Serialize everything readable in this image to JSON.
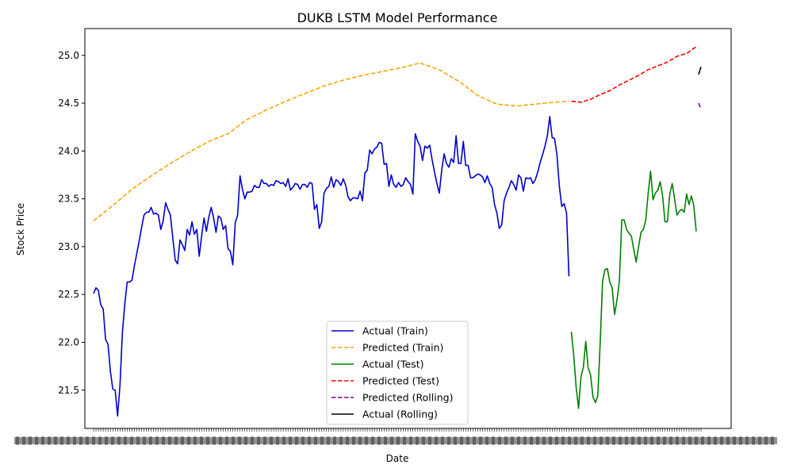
{
  "chart_data": {
    "type": "line",
    "title": "DUKB LSTM Model Performance",
    "xlabel": "Date",
    "ylabel": "Stock Price",
    "ylim": [
      21.1,
      25.28
    ],
    "yticks": [
      21.5,
      22.0,
      22.5,
      23.0,
      23.5,
      24.0,
      24.5,
      25.0
    ],
    "ytick_labels": [
      "21.5",
      "22.0",
      "22.5",
      "23.0",
      "23.5",
      "24.0",
      "24.5",
      "25.0"
    ],
    "x_tick_label_note": "x-axis tick labels are dense and overlapping (illegible)",
    "grid": false,
    "legend": "lower-center",
    "series": [
      {
        "name": "Actual (Train)",
        "color": "#0000cc",
        "style": "solid",
        "points": [
          [
            0,
            22.51
          ],
          [
            1,
            22.57
          ],
          [
            2,
            22.54
          ],
          [
            3,
            22.39
          ],
          [
            4,
            22.35
          ],
          [
            5,
            22.03
          ],
          [
            6,
            21.98
          ],
          [
            7,
            21.7
          ],
          [
            8,
            21.51
          ],
          [
            9,
            21.5
          ],
          [
            10,
            21.23
          ],
          [
            11,
            21.55
          ],
          [
            12,
            22.1
          ],
          [
            13,
            22.4
          ],
          [
            14,
            22.63
          ],
          [
            15,
            22.63
          ],
          [
            16,
            22.65
          ],
          [
            17,
            22.8
          ],
          [
            18,
            22.93
          ],
          [
            19,
            23.06
          ],
          [
            20,
            23.2
          ],
          [
            21,
            23.33
          ],
          [
            22,
            23.36
          ],
          [
            23,
            23.36
          ],
          [
            24,
            23.41
          ],
          [
            25,
            23.34
          ],
          [
            26,
            23.35
          ],
          [
            27,
            23.33
          ],
          [
            28,
            23.18
          ],
          [
            29,
            23.27
          ],
          [
            30,
            23.46
          ],
          [
            31,
            23.39
          ],
          [
            32,
            23.33
          ],
          [
            33,
            23.09
          ],
          [
            34,
            22.86
          ],
          [
            35,
            22.82
          ],
          [
            36,
            23.07
          ],
          [
            37,
            23.02
          ],
          [
            38,
            22.96
          ],
          [
            39,
            23.18
          ],
          [
            40,
            23.12
          ],
          [
            41,
            23.26
          ],
          [
            42,
            23.13
          ],
          [
            43,
            23.18
          ],
          [
            44,
            22.9
          ],
          [
            45,
            23.11
          ],
          [
            46,
            23.3
          ],
          [
            47,
            23.16
          ],
          [
            48,
            23.31
          ],
          [
            49,
            23.41
          ],
          [
            50,
            23.3
          ],
          [
            51,
            23.15
          ],
          [
            52,
            23.32
          ],
          [
            53,
            23.3
          ],
          [
            54,
            23.18
          ],
          [
            55,
            23.22
          ],
          [
            56,
            22.98
          ],
          [
            57,
            22.95
          ],
          [
            58,
            22.81
          ],
          [
            59,
            23.25
          ],
          [
            60,
            23.33
          ],
          [
            61,
            23.74
          ],
          [
            62,
            23.6
          ],
          [
            63,
            23.5
          ],
          [
            64,
            23.57
          ],
          [
            65,
            23.57
          ],
          [
            66,
            23.58
          ],
          [
            67,
            23.64
          ],
          [
            68,
            23.62
          ],
          [
            69,
            23.62
          ],
          [
            70,
            23.7
          ],
          [
            71,
            23.66
          ],
          [
            72,
            23.66
          ],
          [
            73,
            23.63
          ],
          [
            74,
            23.65
          ],
          [
            75,
            23.64
          ],
          [
            76,
            23.69
          ],
          [
            77,
            23.68
          ],
          [
            78,
            23.66
          ],
          [
            79,
            23.67
          ],
          [
            80,
            23.63
          ],
          [
            81,
            23.71
          ],
          [
            82,
            23.59
          ],
          [
            83,
            23.62
          ],
          [
            84,
            23.66
          ],
          [
            85,
            23.65
          ],
          [
            86,
            23.6
          ],
          [
            87,
            23.65
          ],
          [
            88,
            23.65
          ],
          [
            89,
            23.62
          ],
          [
            90,
            23.67
          ],
          [
            91,
            23.66
          ],
          [
            92,
            23.39
          ],
          [
            93,
            23.44
          ],
          [
            94,
            23.19
          ],
          [
            95,
            23.26
          ],
          [
            96,
            23.56
          ],
          [
            97,
            23.61
          ],
          [
            98,
            23.63
          ],
          [
            99,
            23.73
          ],
          [
            100,
            23.62
          ],
          [
            101,
            23.7
          ],
          [
            102,
            23.68
          ],
          [
            103,
            23.64
          ],
          [
            104,
            23.71
          ],
          [
            105,
            23.64
          ],
          [
            106,
            23.52
          ],
          [
            107,
            23.48
          ],
          [
            108,
            23.51
          ],
          [
            109,
            23.51
          ],
          [
            110,
            23.5
          ],
          [
            111,
            23.58
          ],
          [
            112,
            23.48
          ],
          [
            113,
            23.77
          ],
          [
            114,
            23.8
          ],
          [
            115,
            24.01
          ],
          [
            116,
            23.97
          ],
          [
            117,
            24.02
          ],
          [
            118,
            24.04
          ],
          [
            119,
            24.09
          ],
          [
            120,
            24.08
          ],
          [
            121,
            23.86
          ],
          [
            122,
            23.87
          ],
          [
            123,
            23.63
          ],
          [
            124,
            23.75
          ],
          [
            125,
            23.65
          ],
          [
            126,
            23.62
          ],
          [
            127,
            23.67
          ],
          [
            128,
            23.63
          ],
          [
            129,
            23.65
          ],
          [
            130,
            23.72
          ],
          [
            131,
            23.68
          ],
          [
            132,
            23.65
          ],
          [
            133,
            23.55
          ],
          [
            134,
            24.18
          ],
          [
            135,
            24.1
          ],
          [
            136,
            24.05
          ],
          [
            137,
            23.9
          ],
          [
            138,
            24.05
          ],
          [
            139,
            24.03
          ],
          [
            140,
            24.06
          ],
          [
            141,
            23.91
          ],
          [
            142,
            23.78
          ],
          [
            143,
            23.66
          ],
          [
            144,
            23.56
          ],
          [
            145,
            23.8
          ],
          [
            146,
            23.97
          ],
          [
            147,
            23.87
          ],
          [
            148,
            23.83
          ],
          [
            149,
            23.92
          ],
          [
            150,
            23.88
          ],
          [
            151,
            24.16
          ],
          [
            152,
            23.87
          ],
          [
            153,
            23.87
          ],
          [
            154,
            24.1
          ],
          [
            155,
            23.85
          ],
          [
            156,
            23.85
          ],
          [
            157,
            23.72
          ],
          [
            158,
            23.72
          ],
          [
            159,
            23.74
          ],
          [
            160,
            23.76
          ],
          [
            161,
            23.75
          ],
          [
            162,
            23.73
          ],
          [
            163,
            23.67
          ],
          [
            164,
            23.74
          ],
          [
            165,
            23.66
          ],
          [
            166,
            23.62
          ],
          [
            167,
            23.44
          ],
          [
            168,
            23.35
          ],
          [
            169,
            23.19
          ],
          [
            170,
            23.23
          ],
          [
            171,
            23.48
          ],
          [
            172,
            23.56
          ],
          [
            173,
            23.62
          ],
          [
            174,
            23.69
          ],
          [
            175,
            23.65
          ],
          [
            176,
            23.59
          ],
          [
            177,
            23.75
          ],
          [
            178,
            23.72
          ],
          [
            179,
            23.58
          ],
          [
            180,
            23.72
          ],
          [
            181,
            23.71
          ],
          [
            182,
            23.72
          ],
          [
            183,
            23.66
          ],
          [
            184,
            23.7
          ],
          [
            185,
            23.78
          ],
          [
            186,
            23.88
          ],
          [
            187,
            23.96
          ],
          [
            188,
            24.05
          ],
          [
            189,
            24.16
          ],
          [
            190,
            24.36
          ],
          [
            191,
            24.14
          ],
          [
            192,
            24.13
          ],
          [
            193,
            23.96
          ],
          [
            194,
            23.63
          ],
          [
            195,
            23.42
          ],
          [
            196,
            23.45
          ],
          [
            197,
            23.35
          ],
          [
            198,
            22.69
          ]
        ]
      },
      {
        "name": "Predicted (Train)",
        "color": "#ffa500",
        "style": "dashed",
        "points": [
          [
            0,
            23.27
          ],
          [
            8,
            23.43
          ],
          [
            16,
            23.6
          ],
          [
            24,
            23.74
          ],
          [
            32,
            23.87
          ],
          [
            40,
            23.99
          ],
          [
            48,
            24.1
          ],
          [
            56,
            24.18
          ],
          [
            64,
            24.33
          ],
          [
            72,
            24.43
          ],
          [
            80,
            24.52
          ],
          [
            88,
            24.6
          ],
          [
            96,
            24.68
          ],
          [
            104,
            24.74
          ],
          [
            112,
            24.79
          ],
          [
            120,
            24.83
          ],
          [
            128,
            24.87
          ],
          [
            136,
            24.92
          ],
          [
            144,
            24.85
          ],
          [
            152,
            24.73
          ],
          [
            160,
            24.58
          ],
          [
            168,
            24.49
          ],
          [
            176,
            24.47
          ],
          [
            184,
            24.49
          ],
          [
            192,
            24.51
          ],
          [
            198,
            24.52
          ]
        ]
      },
      {
        "name": "Actual (Test)",
        "color": "#008000",
        "style": "solid",
        "points": [
          [
            199,
            22.11
          ],
          [
            200,
            21.86
          ],
          [
            201,
            21.53
          ],
          [
            202,
            21.31
          ],
          [
            203,
            21.64
          ],
          [
            204,
            21.74
          ],
          [
            205,
            22.01
          ],
          [
            206,
            21.73
          ],
          [
            207,
            21.66
          ],
          [
            208,
            21.43
          ],
          [
            209,
            21.37
          ],
          [
            210,
            21.44
          ],
          [
            211,
            21.99
          ],
          [
            212,
            22.64
          ],
          [
            213,
            22.76
          ],
          [
            214,
            22.77
          ],
          [
            215,
            22.63
          ],
          [
            216,
            22.57
          ],
          [
            217,
            22.29
          ],
          [
            218,
            22.44
          ],
          [
            219,
            22.64
          ],
          [
            220,
            23.28
          ],
          [
            221,
            23.28
          ],
          [
            222,
            23.18
          ],
          [
            223,
            23.14
          ],
          [
            224,
            23.11
          ],
          [
            225,
            22.97
          ],
          [
            226,
            22.84
          ],
          [
            227,
            23.0
          ],
          [
            228,
            23.15
          ],
          [
            229,
            23.18
          ],
          [
            230,
            23.28
          ],
          [
            231,
            23.56
          ],
          [
            232,
            23.79
          ],
          [
            233,
            23.49
          ],
          [
            234,
            23.56
          ],
          [
            235,
            23.59
          ],
          [
            236,
            23.68
          ],
          [
            237,
            23.53
          ],
          [
            238,
            23.26
          ],
          [
            239,
            23.26
          ],
          [
            240,
            23.55
          ],
          [
            241,
            23.66
          ],
          [
            242,
            23.5
          ],
          [
            243,
            23.33
          ],
          [
            244,
            23.37
          ],
          [
            245,
            23.39
          ],
          [
            246,
            23.36
          ],
          [
            247,
            23.55
          ],
          [
            248,
            23.44
          ],
          [
            249,
            23.53
          ],
          [
            250,
            23.43
          ],
          [
            251,
            23.16
          ]
        ]
      },
      {
        "name": "Predicted (Test)",
        "color": "#ff0000",
        "style": "dashed",
        "points": [
          [
            199,
            24.52
          ],
          [
            203,
            24.51
          ],
          [
            207,
            24.54
          ],
          [
            211,
            24.59
          ],
          [
            215,
            24.63
          ],
          [
            219,
            24.69
          ],
          [
            223,
            24.74
          ],
          [
            227,
            24.79
          ],
          [
            231,
            24.85
          ],
          [
            235,
            24.89
          ],
          [
            239,
            24.93
          ],
          [
            243,
            24.99
          ],
          [
            247,
            25.02
          ],
          [
            251,
            25.09
          ]
        ]
      },
      {
        "name": "Predicted (Rolling)",
        "color": "#800080",
        "style": "dashed",
        "points": [
          [
            252,
            24.5
          ],
          [
            253,
            24.44
          ]
        ]
      },
      {
        "name": "Actual (Rolling)",
        "color": "#000000",
        "style": "solid",
        "points": [
          [
            252,
            24.8
          ],
          [
            253,
            24.88
          ]
        ]
      }
    ]
  }
}
